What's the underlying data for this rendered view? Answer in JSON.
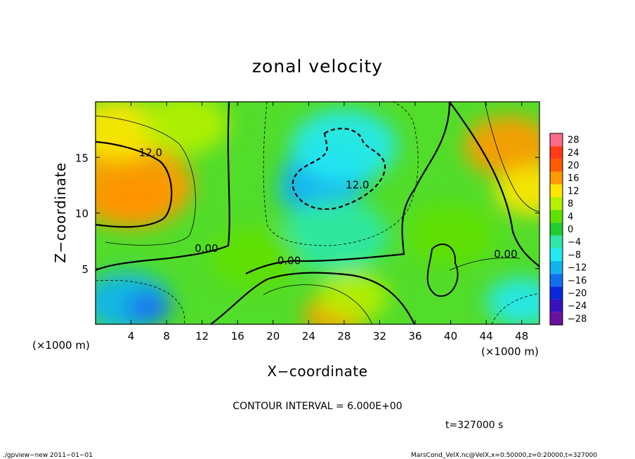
{
  "chart_data": {
    "type": "heatmap",
    "title": "zonal velocity",
    "xlabel": "X−coordinate",
    "ylabel": "Z−coordinate",
    "x_unit": "(×1000 m)",
    "y_unit": "(×1000 m)",
    "xlim": [
      0,
      50
    ],
    "ylim": [
      0,
      20
    ],
    "x_ticks": [
      4,
      8,
      12,
      16,
      20,
      24,
      28,
      32,
      36,
      40,
      44,
      48
    ],
    "y_ticks": [
      5,
      10,
      15
    ],
    "colorbar": {
      "levels": [
        28,
        24,
        20,
        16,
        12,
        8,
        4,
        0,
        -4,
        -8,
        -12,
        -16,
        -20,
        -24,
        -28
      ],
      "labels": [
        "28",
        "24",
        "20",
        "16",
        "12",
        "8",
        "4",
        "0",
        "−4",
        "−8",
        "−12",
        "−16",
        "−20",
        "−24",
        "−28"
      ],
      "colors": [
        "#ff6a8a",
        "#ff3b1a",
        "#ff5a00",
        "#ff9a00",
        "#ffe600",
        "#b4f000",
        "#5ee000",
        "#20cc30",
        "#2ee8a8",
        "#22e8f0",
        "#12b4f0",
        "#1270f0",
        "#0a28e0",
        "#3a10c0",
        "#6a10a0"
      ]
    },
    "contour_labels": [
      {
        "text": "12.0",
        "x": 6.2,
        "y": 15.1
      },
      {
        "text": "12.0",
        "x": 29.5,
        "y": 12.2
      },
      {
        "text": "0.00",
        "x": 12.5,
        "y": 6.5
      },
      {
        "text": "0.00",
        "x": 21.8,
        "y": 5.4
      },
      {
        "text": "0.00",
        "x": 46.2,
        "y": 6.0
      }
    ],
    "value_blobs": [
      {
        "x": 4.5,
        "y": 11.5,
        "v": 22,
        "r": 4
      },
      {
        "x": 4.0,
        "y": 12.5,
        "v": 14,
        "r": 7
      },
      {
        "x": 2.5,
        "y": 17.5,
        "v": 10,
        "r": 5
      },
      {
        "x": 10.0,
        "y": 18.0,
        "v": 8,
        "r": 5
      },
      {
        "x": 26.0,
        "y": 13.5,
        "v": -13,
        "r": 5
      },
      {
        "x": 24.5,
        "y": 12.0,
        "v": -12,
        "r": 4
      },
      {
        "x": 28.0,
        "y": 16.0,
        "v": -8,
        "r": 6
      },
      {
        "x": 27.0,
        "y": 8.0,
        "v": -6,
        "r": 6
      },
      {
        "x": 46.5,
        "y": 16.0,
        "v": 14,
        "r": 5
      },
      {
        "x": 49.0,
        "y": 12.0,
        "v": 10,
        "r": 4
      },
      {
        "x": 3.5,
        "y": 2.0,
        "v": -12,
        "r": 5
      },
      {
        "x": 6.0,
        "y": 1.5,
        "v": -18,
        "r": 2.5
      },
      {
        "x": 27.0,
        "y": 0.8,
        "v": 16,
        "r": 3.5
      },
      {
        "x": 29.0,
        "y": 2.5,
        "v": 8,
        "r": 4
      },
      {
        "x": 48.0,
        "y": 2.0,
        "v": -8,
        "r": 4
      },
      {
        "x": 18.0,
        "y": 6.0,
        "v": 4,
        "r": 5
      },
      {
        "x": 40.0,
        "y": 8.0,
        "v": 2,
        "r": 5
      }
    ],
    "contour_interval": "CONTOUR INTERVAL = 6.000E+00",
    "time": "t=327000 s"
  },
  "footer": {
    "left": "./gpview−new   2011−01−01",
    "right": "MarsCond_VelX.nc@VelX,x=0:50000,z=0:20000,t=327000"
  }
}
